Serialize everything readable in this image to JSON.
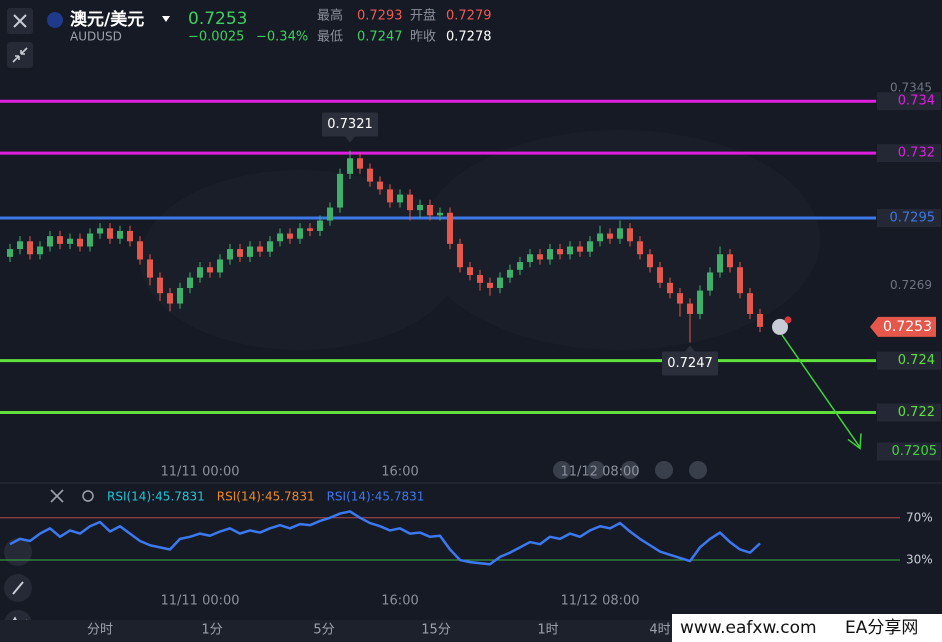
{
  "header": {
    "symbol": "澳元/美元",
    "code": "AUDUSD",
    "price": 0.7253,
    "change": "−0.0025",
    "change_pct": "−0.34%",
    "stats": [
      {
        "label": "最高",
        "value": 0.7293
      },
      {
        "label": "开盘",
        "value": 0.7279
      },
      {
        "label": "最低",
        "value": 0.7247
      },
      {
        "label": "昨收",
        "value": 0.7278
      }
    ]
  },
  "chart_data": [
    {
      "type": "candlestick",
      "up_color": "#3fb06a",
      "down_color": "#e5564b",
      "categories": [
        null,
        null,
        null,
        null,
        null,
        null,
        null,
        null,
        null,
        null,
        null,
        null,
        null,
        null,
        null,
        null,
        null,
        null,
        null,
        "11/11 00:00",
        null,
        null,
        null,
        null,
        null,
        null,
        null,
        null,
        null,
        null,
        null,
        null,
        null,
        null,
        null,
        null,
        null,
        null,
        null,
        "16:00",
        null,
        null,
        null,
        null,
        null,
        null,
        null,
        null,
        null,
        null,
        null,
        null,
        null,
        null,
        null,
        null,
        null,
        null,
        null,
        "11/12 08:00",
        null,
        null,
        null,
        null,
        null,
        null,
        null,
        null,
        null,
        null,
        null,
        null,
        null,
        null,
        null,
        null
      ],
      "ohlc": [
        [
          0.728,
          0.7285,
          0.7278,
          0.7283
        ],
        [
          0.7283,
          0.7288,
          0.7281,
          0.7286
        ],
        [
          0.7286,
          0.7288,
          0.7279,
          0.7281
        ],
        [
          0.7281,
          0.7286,
          0.7279,
          0.7284
        ],
        [
          0.7284,
          0.729,
          0.7282,
          0.7288
        ],
        [
          0.7288,
          0.729,
          0.7283,
          0.7285
        ],
        [
          0.7285,
          0.7289,
          0.7283,
          0.7287
        ],
        [
          0.7287,
          0.7289,
          0.7282,
          0.7284
        ],
        [
          0.7284,
          0.7291,
          0.7282,
          0.7289
        ],
        [
          0.7289,
          0.7293,
          0.7287,
          0.7291
        ],
        [
          0.7291,
          0.7293,
          0.7285,
          0.7287
        ],
        [
          0.7287,
          0.7292,
          0.7285,
          0.729
        ],
        [
          0.729,
          0.7292,
          0.7284,
          0.7286
        ],
        [
          0.7286,
          0.7288,
          0.7277,
          0.7279
        ],
        [
          0.7279,
          0.7281,
          0.7269,
          0.7272
        ],
        [
          0.7272,
          0.7274,
          0.7263,
          0.7266
        ],
        [
          0.7266,
          0.7268,
          0.7259,
          0.7262
        ],
        [
          0.7262,
          0.727,
          0.726,
          0.7268
        ],
        [
          0.7268,
          0.7274,
          0.7266,
          0.7272
        ],
        [
          0.7272,
          0.7278,
          0.727,
          0.7276
        ],
        [
          0.7276,
          0.7278,
          0.7272,
          0.7274
        ],
        [
          0.7274,
          0.7281,
          0.7272,
          0.7279
        ],
        [
          0.7279,
          0.7285,
          0.7277,
          0.7283
        ],
        [
          0.7283,
          0.7285,
          0.7278,
          0.728
        ],
        [
          0.728,
          0.7286,
          0.7278,
          0.7284
        ],
        [
          0.7284,
          0.7286,
          0.728,
          0.7282
        ],
        [
          0.7282,
          0.7288,
          0.728,
          0.7286
        ],
        [
          0.7286,
          0.7291,
          0.7284,
          0.7289
        ],
        [
          0.7289,
          0.7291,
          0.7285,
          0.7287
        ],
        [
          0.7287,
          0.7293,
          0.7285,
          0.7291
        ],
        [
          0.7291,
          0.7293,
          0.7288,
          0.729
        ],
        [
          0.729,
          0.7296,
          0.7288,
          0.7294
        ],
        [
          0.7294,
          0.7301,
          0.7292,
          0.7299
        ],
        [
          0.7299,
          0.7314,
          0.7297,
          0.7312
        ],
        [
          0.7312,
          0.7321,
          0.731,
          0.7318
        ],
        [
          0.7318,
          0.732,
          0.7312,
          0.7314
        ],
        [
          0.7314,
          0.7316,
          0.7307,
          0.7309
        ],
        [
          0.7309,
          0.7311,
          0.7304,
          0.7306
        ],
        [
          0.7306,
          0.7308,
          0.7299,
          0.7301
        ],
        [
          0.7301,
          0.7306,
          0.7299,
          0.7304
        ],
        [
          0.7304,
          0.7306,
          0.7294,
          0.7298
        ],
        [
          0.7298,
          0.7302,
          0.7295,
          0.73
        ],
        [
          0.73,
          0.7302,
          0.7294,
          0.7296
        ],
        [
          0.7296,
          0.7299,
          0.7294,
          0.7297
        ],
        [
          0.7297,
          0.7299,
          0.7283,
          0.7285
        ],
        [
          0.7285,
          0.7287,
          0.7274,
          0.7276
        ],
        [
          0.7276,
          0.7278,
          0.7271,
          0.7273
        ],
        [
          0.7273,
          0.7275,
          0.7267,
          0.727
        ],
        [
          0.727,
          0.7272,
          0.7265,
          0.7268
        ],
        [
          0.7268,
          0.7274,
          0.7266,
          0.7272
        ],
        [
          0.7272,
          0.7277,
          0.727,
          0.7275
        ],
        [
          0.7275,
          0.728,
          0.7273,
          0.7278
        ],
        [
          0.7278,
          0.7283,
          0.7276,
          0.7281
        ],
        [
          0.7281,
          0.7283,
          0.7277,
          0.7279
        ],
        [
          0.7279,
          0.7285,
          0.7277,
          0.7283
        ],
        [
          0.7283,
          0.7285,
          0.7279,
          0.7281
        ],
        [
          0.7281,
          0.7286,
          0.7279,
          0.7284
        ],
        [
          0.7284,
          0.7286,
          0.728,
          0.7282
        ],
        [
          0.7282,
          0.7288,
          0.728,
          0.7286
        ],
        [
          0.7286,
          0.7292,
          0.7284,
          0.7289
        ],
        [
          0.7289,
          0.7291,
          0.7285,
          0.7287
        ],
        [
          0.7287,
          0.7294,
          0.7285,
          0.7291
        ],
        [
          0.7291,
          0.7293,
          0.7284,
          0.7286
        ],
        [
          0.7286,
          0.7288,
          0.7279,
          0.7281
        ],
        [
          0.7281,
          0.7283,
          0.7274,
          0.7276
        ],
        [
          0.7276,
          0.7278,
          0.7268,
          0.727
        ],
        [
          0.727,
          0.7272,
          0.7264,
          0.7266
        ],
        [
          0.7266,
          0.7268,
          0.7257,
          0.7262
        ],
        [
          0.7262,
          0.7264,
          0.7247,
          0.7258
        ],
        [
          0.7258,
          0.7269,
          0.7256,
          0.7267
        ],
        [
          0.7267,
          0.7276,
          0.7265,
          0.7274
        ],
        [
          0.7274,
          0.7284,
          0.7272,
          0.7281
        ],
        [
          0.7281,
          0.7283,
          0.7274,
          0.7276
        ],
        [
          0.7276,
          0.7278,
          0.7264,
          0.7266
        ],
        [
          0.7266,
          0.7268,
          0.7256,
          0.7258
        ],
        [
          0.7258,
          0.726,
          0.7251,
          0.7253
        ]
      ],
      "ylim": [
        0.7194,
        0.7379
      ],
      "yticks": [
        0.7345,
        0.7269
      ],
      "levels": [
        {
          "value": 0.734,
          "color": "#e01ee0"
        },
        {
          "value": 0.732,
          "color": "#e01ee0"
        },
        {
          "value": 0.7295,
          "color": "#3c78e6"
        },
        {
          "value": 0.724,
          "color": "#5fe03a"
        },
        {
          "value": 0.722,
          "color": "#5fe03a"
        }
      ],
      "high_label": 0.7321,
      "low_label": 0.7247,
      "last_price": 0.7253,
      "target": 0.7205,
      "target_color": "#3fd23a"
    },
    {
      "type": "line",
      "color": "#3c78f0",
      "legend": [
        {
          "label": "RSI(14):45.7831",
          "color": "#22c4d8"
        },
        {
          "label": "RSI(14):45.7831",
          "color": "#f08a24"
        },
        {
          "label": "RSI(14):45.7831",
          "color": "#3c78f0"
        }
      ],
      "values": [
        45,
        50,
        48,
        55,
        60,
        52,
        58,
        55,
        62,
        66,
        57,
        62,
        55,
        48,
        44,
        42,
        40,
        50,
        52,
        55,
        53,
        57,
        60,
        55,
        58,
        56,
        60,
        63,
        60,
        64,
        63,
        67,
        70,
        74,
        76,
        70,
        65,
        62,
        58,
        60,
        55,
        56,
        52,
        53,
        40,
        30,
        28,
        27,
        26,
        33,
        37,
        42,
        47,
        45,
        52,
        50,
        55,
        52,
        58,
        62,
        60,
        65,
        57,
        50,
        44,
        38,
        35,
        32,
        29,
        42,
        50,
        56,
        47,
        40,
        37,
        45.7831
      ],
      "ylim": [
        -22,
        101
      ],
      "yticks": [
        {
          "value": 70,
          "label": "70%"
        },
        {
          "value": 30,
          "label": "30%"
        }
      ],
      "level_colors": [
        "#b5464a",
        "#3fae45"
      ]
    }
  ],
  "toolbar": [
    "分时",
    "1分",
    "5分",
    "15分",
    "1时",
    "4时"
  ],
  "watermark": {
    "site": "www.eafxw.com",
    "name": "EA分享网"
  }
}
